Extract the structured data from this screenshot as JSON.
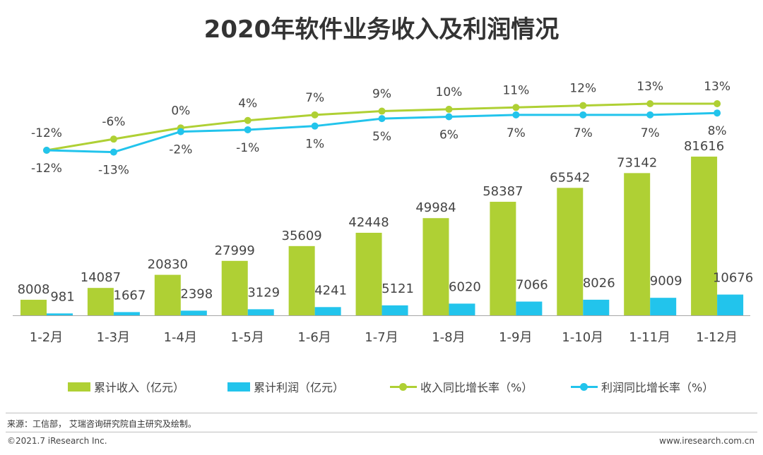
{
  "title": "2020年软件业务收入及利润情况",
  "colors": {
    "revenue": "#afd034",
    "profit": "#22c4ec"
  },
  "chart_data": {
    "type": "bar+line",
    "categories": [
      "1-2月",
      "1-3月",
      "1-4月",
      "1-5月",
      "1-6月",
      "1-7月",
      "1-8月",
      "1-9月",
      "1-10月",
      "1-11月",
      "1-12月"
    ],
    "bars": [
      {
        "name": "累计收入（亿元）",
        "values": [
          8008,
          14087,
          20830,
          27999,
          35609,
          42448,
          49984,
          58387,
          65542,
          73142,
          81616
        ]
      },
      {
        "name": "累计利润（亿元）",
        "values": [
          981,
          1667,
          2398,
          3129,
          4241,
          5121,
          6020,
          7066,
          8026,
          9009,
          10676
        ]
      }
    ],
    "lines": [
      {
        "name": "收入同比增长率（%）",
        "values": [
          -12,
          -6,
          0,
          4,
          7,
          9,
          10,
          11,
          12,
          13,
          13
        ],
        "labels": [
          "-12%",
          "-6%",
          "0%",
          "4%",
          "7%",
          "9%",
          "10%",
          "11%",
          "12%",
          "13%",
          "13%"
        ]
      },
      {
        "name": "利润同比增长率（%）",
        "values": [
          -12,
          -13,
          -2,
          -1,
          1,
          5,
          6,
          7,
          7,
          7,
          8
        ],
        "labels": [
          "-12%",
          "-13%",
          "-2%",
          "-1%",
          "1%",
          "5%",
          "6%",
          "7%",
          "7%",
          "7%",
          "8%"
        ]
      }
    ],
    "legend_position": "bottom",
    "grid": false
  },
  "footer": {
    "source": "来源：工信部， 艾瑞咨询研究院自主研究及绘制。",
    "copyright": "©2021.7 iResearch Inc.",
    "website": "www.iresearch.com.cn"
  }
}
